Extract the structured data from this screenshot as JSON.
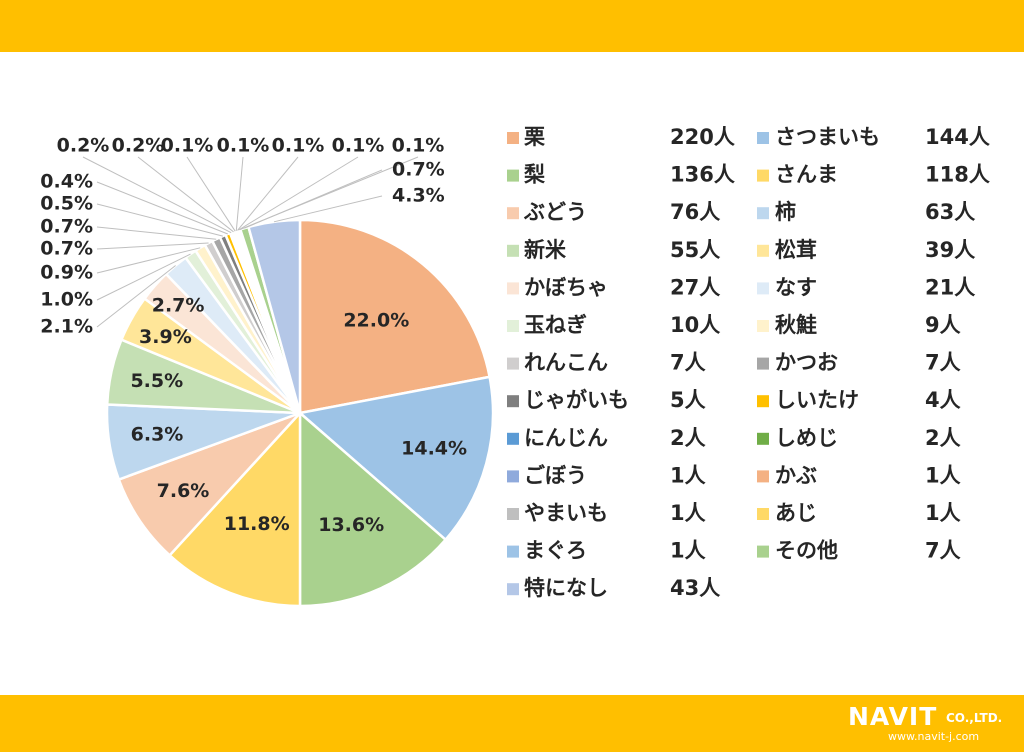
{
  "colors": {
    "band": "#ffbf00",
    "text": "#262626",
    "leader": "#bfbfbf"
  },
  "logo": {
    "main": "NAVIT",
    "co": "CO.,LTD.",
    "url": "www.navit-j.com"
  },
  "chart_data": {
    "type": "pie",
    "unit": "人",
    "slices": [
      {
        "label": "栗",
        "count": "220人",
        "value": 220,
        "pct": "22.0%",
        "color": "#f4b183"
      },
      {
        "label": "さつまいも",
        "count": "144人",
        "value": 144,
        "pct": "14.4%",
        "color": "#9dc3e6"
      },
      {
        "label": "梨",
        "count": "136人",
        "value": 136,
        "pct": "13.6%",
        "color": "#a9d18e"
      },
      {
        "label": "さんま",
        "count": "118人",
        "value": 118,
        "pct": "11.8%",
        "color": "#ffd966"
      },
      {
        "label": "ぶどう",
        "count": "76人",
        "value": 76,
        "pct": "7.6%",
        "color": "#f8cbad"
      },
      {
        "label": "柿",
        "count": "63人",
        "value": 63,
        "pct": "6.3%",
        "color": "#bdd7ee"
      },
      {
        "label": "新米",
        "count": "55人",
        "value": 55,
        "pct": "5.5%",
        "color": "#c5e0b4"
      },
      {
        "label": "松茸",
        "count": "39人",
        "value": 39,
        "pct": "3.9%",
        "color": "#ffe699"
      },
      {
        "label": "かぼちゃ",
        "count": "27人",
        "value": 27,
        "pct": "2.7%",
        "color": "#fbe5d6"
      },
      {
        "label": "なす",
        "count": "21人",
        "value": 21,
        "pct": "2.1%",
        "color": "#deebf7"
      },
      {
        "label": "玉ねぎ",
        "count": "10人",
        "value": 10,
        "pct": "1.0%",
        "color": "#e2f0d9"
      },
      {
        "label": "秋鮭",
        "count": "9人",
        "value": 9,
        "pct": "0.9%",
        "color": "#fff2cc"
      },
      {
        "label": "れんこん",
        "count": "7人",
        "value": 7,
        "pct": "0.7%",
        "color": "#d0cece"
      },
      {
        "label": "かつお",
        "count": "7人",
        "value": 7,
        "pct": "0.7%",
        "color": "#a6a6a6"
      },
      {
        "label": "じゃがいも",
        "count": "5人",
        "value": 5,
        "pct": "0.5%",
        "color": "#7f7f7f"
      },
      {
        "label": "しいたけ",
        "count": "4人",
        "value": 4,
        "pct": "0.4%",
        "color": "#ffc000"
      },
      {
        "label": "にんじん",
        "count": "2人",
        "value": 2,
        "pct": "0.2%",
        "color": "#5b9bd5"
      },
      {
        "label": "しめじ",
        "count": "2人",
        "value": 2,
        "pct": "0.2%",
        "color": "#70ad47"
      },
      {
        "label": "ごぼう",
        "count": "1人",
        "value": 1,
        "pct": "0.1%",
        "color": "#8faadc"
      },
      {
        "label": "かぶ",
        "count": "1人",
        "value": 1,
        "pct": "0.1%",
        "color": "#f4b183"
      },
      {
        "label": "やまいも",
        "count": "1人",
        "value": 1,
        "pct": "0.1%",
        "color": "#bfbfbf"
      },
      {
        "label": "あじ",
        "count": "1人",
        "value": 1,
        "pct": "0.1%",
        "color": "#ffd966"
      },
      {
        "label": "まぐろ",
        "count": "1人",
        "value": 1,
        "pct": "0.1%",
        "color": "#9dc3e6"
      },
      {
        "label": "その他",
        "count": "7人",
        "value": 7,
        "pct": "0.7%",
        "color": "#a9d18e"
      },
      {
        "label": "特になし",
        "count": "43人",
        "value": 43,
        "pct": "4.3%",
        "color": "#b4c7e7"
      }
    ]
  }
}
